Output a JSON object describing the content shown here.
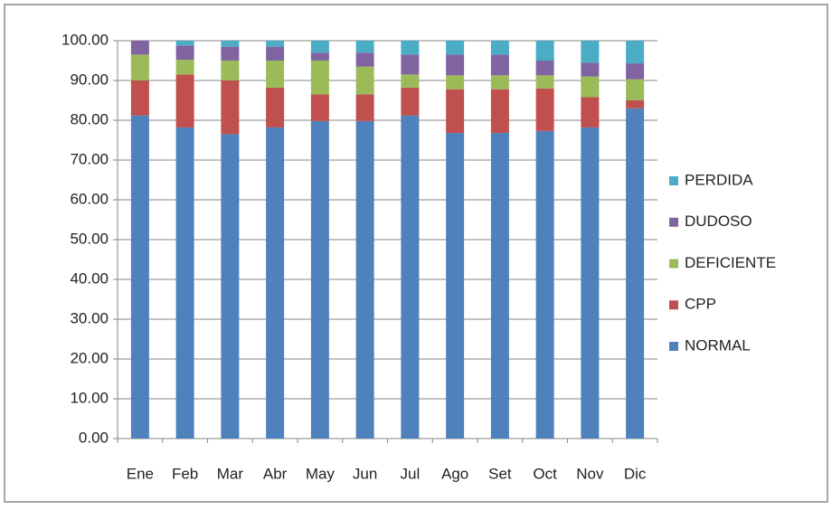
{
  "chart_data": {
    "type": "stacked_bar",
    "categories": [
      "Ene",
      "Feb",
      "Mar",
      "Abr",
      "May",
      "Jun",
      "Jul",
      "Ago",
      "Set",
      "Oct",
      "Nov",
      "Dic"
    ],
    "series": [
      {
        "name": "NORMAL",
        "color": "#4f81bd",
        "values": [
          81.2,
          78.2,
          76.5,
          78.2,
          79.8,
          79.8,
          81.2,
          76.8,
          76.8,
          77.3,
          78.2,
          83
        ]
      },
      {
        "name": "CPP",
        "color": "#c0504d",
        "values": [
          8.8,
          13.3,
          13.5,
          10,
          6.7,
          6.7,
          7,
          11,
          11,
          10.7,
          7.6,
          2
        ]
      },
      {
        "name": "DEFICIENTE",
        "color": "#9bbb59",
        "values": [
          6.5,
          3.7,
          5,
          6.8,
          8.5,
          7,
          3.3,
          3.5,
          3.5,
          3.3,
          5.2,
          5.3
        ]
      },
      {
        "name": "DUDOSO",
        "color": "#8064a2",
        "values": [
          3.5,
          3.6,
          3.5,
          3.5,
          2,
          3.5,
          5,
          5.2,
          5.2,
          3.7,
          3.5,
          4
        ]
      },
      {
        "name": "PERDIDA",
        "color": "#4bacc6",
        "values": [
          0,
          1.2,
          1.5,
          1.5,
          3,
          3,
          3.5,
          3.5,
          3.5,
          5,
          5.5,
          5.7
        ]
      }
    ],
    "ylim": [
      0,
      100
    ],
    "yticks": [
      {
        "value": 0,
        "label": "0.00"
      },
      {
        "value": 10,
        "label": "10.00"
      },
      {
        "value": 20,
        "label": "20.00"
      },
      {
        "value": 30,
        "label": "30.00"
      },
      {
        "value": 40,
        "label": "40.00"
      },
      {
        "value": 50,
        "label": "50.00"
      },
      {
        "value": 60,
        "label": "60.00"
      },
      {
        "value": 70,
        "label": "70.00"
      },
      {
        "value": 80,
        "label": "80.00"
      },
      {
        "value": 90,
        "label": "90.00"
      },
      {
        "value": 100,
        "label": "100.00"
      }
    ],
    "grid": true,
    "legend": "right"
  }
}
